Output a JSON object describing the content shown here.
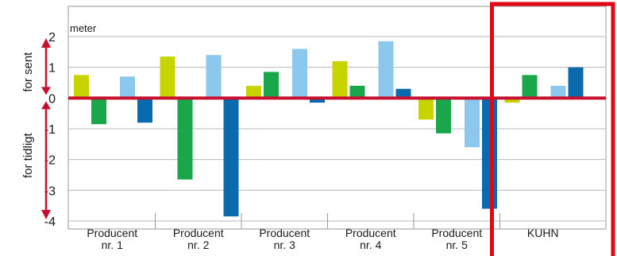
{
  "chart_data": {
    "type": "bar",
    "title": "",
    "xlabel": "",
    "ylabel": "meter",
    "ylim": [
      -4,
      2
    ],
    "y_ticks": [
      "2",
      "1",
      "0",
      "-1",
      "-2",
      "-3",
      "-4"
    ],
    "y_tick_values": [
      2,
      1,
      0,
      -1,
      -2,
      -3,
      -4
    ],
    "grid": true,
    "legend": "none",
    "side_labels": {
      "upper": "for sent",
      "lower": "for tidligt"
    },
    "categories": [
      {
        "line1": "Producent",
        "line2": "nr. 1"
      },
      {
        "line1": "Producent",
        "line2": "nr. 2"
      },
      {
        "line1": "Producent",
        "line2": "nr. 3"
      },
      {
        "line1": "Producent",
        "line2": "nr. 4"
      },
      {
        "line1": "Producent",
        "line2": "nr. 5"
      },
      {
        "line1": "KUHN",
        "line2": ""
      }
    ],
    "series": [
      {
        "color": "#c8d400",
        "values": [
          0.75,
          1.35,
          0.4,
          1.2,
          -0.7,
          -0.15
        ]
      },
      {
        "color": "#1aa64a",
        "values": [
          -0.85,
          -2.65,
          0.85,
          0.4,
          -1.15,
          0.75
        ]
      },
      {
        "color": "#8cc8ee",
        "values": [
          0.7,
          1.4,
          1.6,
          1.85,
          -1.6,
          0.4
        ]
      },
      {
        "color": "#0a6aae",
        "values": [
          -0.8,
          -3.85,
          -0.15,
          0.3,
          -3.6,
          1.0
        ]
      }
    ],
    "highlight": {
      "category_index": 5,
      "color": "#e30613"
    },
    "zero_line_color": "#c8102e",
    "arrow_color": "#c8102e"
  }
}
